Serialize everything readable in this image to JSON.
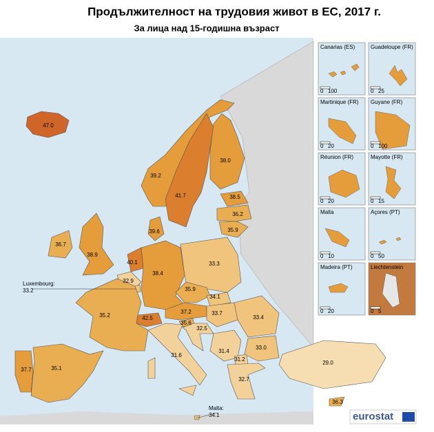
{
  "header": {
    "title": "Продължителност на трудовия живот в ЕС, 2017 г.",
    "subtitle": "За лица над 15-годишна възраст"
  },
  "regions": [
    {
      "value": "47.0",
      "color": "#d0652a"
    },
    {
      "value": "39.2",
      "color": "#e59d3c"
    },
    {
      "value": "41.7",
      "color": "#db7f2e"
    },
    {
      "value": "38.0",
      "color": "#e59d3c"
    },
    {
      "value": "38.5",
      "color": "#e59d3c"
    },
    {
      "value": "36.2",
      "color": "#eaae52"
    },
    {
      "value": "35.9",
      "color": "#eaae52"
    },
    {
      "value": "39.6",
      "color": "#e59d3c"
    },
    {
      "value": "36.7",
      "color": "#eaae52"
    },
    {
      "value": "38.9",
      "color": "#e59d3c"
    },
    {
      "value": "40.1",
      "color": "#db7f2e"
    },
    {
      "value": "32.9",
      "color": "#f3d19a"
    },
    {
      "name": "Luxembourg:",
      "value": "33.2",
      "color": "#f0c47c"
    },
    {
      "value": "38.4",
      "color": "#e59d3c"
    },
    {
      "value": "33.3",
      "color": "#f0c47c"
    },
    {
      "value": "35.9",
      "color": "#eaae52"
    },
    {
      "value": "34.1",
      "color": "#f0c47c"
    },
    {
      "value": "37.2",
      "color": "#e59d3c"
    },
    {
      "value": "42.5",
      "color": "#db7f2e"
    },
    {
      "value": "35.2",
      "color": "#eaae52"
    },
    {
      "value": "35.6",
      "color": "#eaae52"
    },
    {
      "value": "33.7",
      "color": "#f0c47c"
    },
    {
      "value": "33.4",
      "color": "#f0c47c"
    },
    {
      "value": "32.5",
      "color": "#f3d19a"
    },
    {
      "value": "31.4",
      "color": "#f3d19a"
    },
    {
      "value": "31.2",
      "color": "#f3d19a"
    },
    {
      "value": "33.0",
      "color": "#f0c47c"
    },
    {
      "value": "31.6",
      "color": "#f3d19a"
    },
    {
      "value": "29.0",
      "color": "#f7deb2"
    },
    {
      "value": "35.1",
      "color": "#eaae52"
    },
    {
      "value": "37.7",
      "color": "#e59d3c"
    },
    {
      "value": "32.7",
      "color": "#f3d19a"
    },
    {
      "value": "36.3",
      "color": "#eaae52"
    },
    {
      "name": "Malta:",
      "value": "34.1",
      "color": "#f0c47c"
    }
  ],
  "insets": [
    {
      "name": "Canarias (ES)",
      "scale": [
        "0",
        "100"
      ]
    },
    {
      "name": "Guadeloupe (FR)",
      "scale": [
        "0",
        "25"
      ]
    },
    {
      "name": "Martinique (FR)",
      "scale": [
        "0",
        "20"
      ]
    },
    {
      "name": "Guyane (FR)",
      "scale": [
        "0",
        "100"
      ]
    },
    {
      "name": "Réunion (FR)",
      "scale": [
        "0",
        "20"
      ]
    },
    {
      "name": "Mayotte (FR)",
      "scale": [
        "0",
        "15"
      ]
    },
    {
      "name": "Malta",
      "scale": [
        "0",
        "10"
      ]
    },
    {
      "name": "Açores (PT)",
      "scale": [
        "0",
        "50"
      ]
    },
    {
      "name": "Madeira (PT)",
      "scale": [
        "0",
        "20"
      ]
    },
    {
      "name": "Liechtenstein",
      "scale": [
        "0",
        "5"
      ]
    }
  ],
  "footer": {
    "logo": "eurostat"
  }
}
